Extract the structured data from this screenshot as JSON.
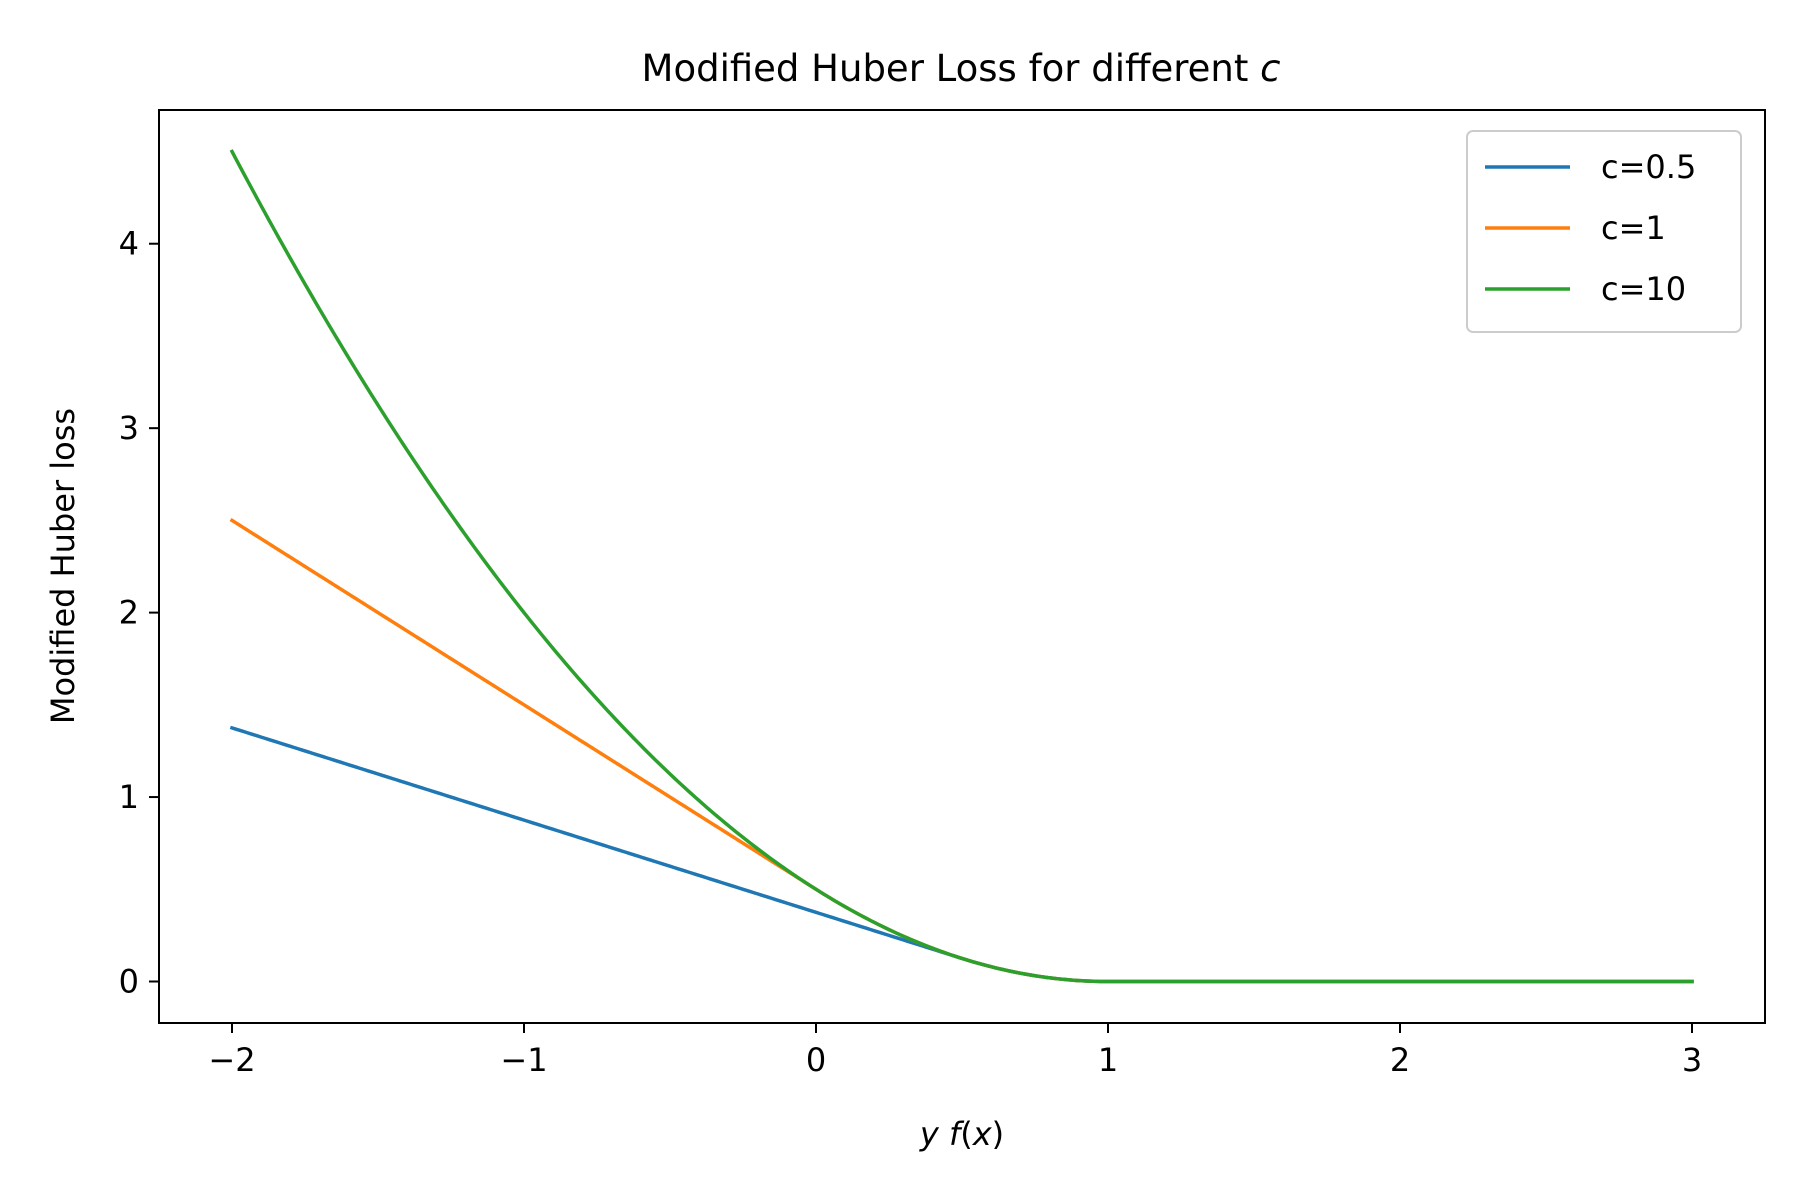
{
  "chart_data": {
    "type": "line",
    "title_main": "Modified Huber Loss for different ",
    "title_var": "c",
    "xlabel_parts": [
      "y",
      " ",
      "f",
      "(",
      "x",
      ")"
    ],
    "ylabel": "Modified Huber loss",
    "xlim": [
      -2.25,
      3.25
    ],
    "ylim": [
      -0.225,
      4.725
    ],
    "x_ticks": [
      -2,
      -1,
      0,
      1,
      2,
      3
    ],
    "x_tick_labels": [
      "−2",
      "−1",
      "0",
      "1",
      "2",
      "3"
    ],
    "y_ticks": [
      0,
      1,
      2,
      3,
      4
    ],
    "y_tick_labels": [
      "0",
      "1",
      "2",
      "3",
      "4"
    ],
    "grid": false,
    "legend_position": "top-right",
    "x_range": [
      -2,
      3
    ],
    "series": [
      {
        "name": "c=0.5",
        "c": 0.5,
        "color": "#1f77b4"
      },
      {
        "name": "c=1",
        "c": 1,
        "color": "#ff7f0e"
      },
      {
        "name": "c=10",
        "c": 10,
        "color": "#2ca02c"
      }
    ]
  }
}
